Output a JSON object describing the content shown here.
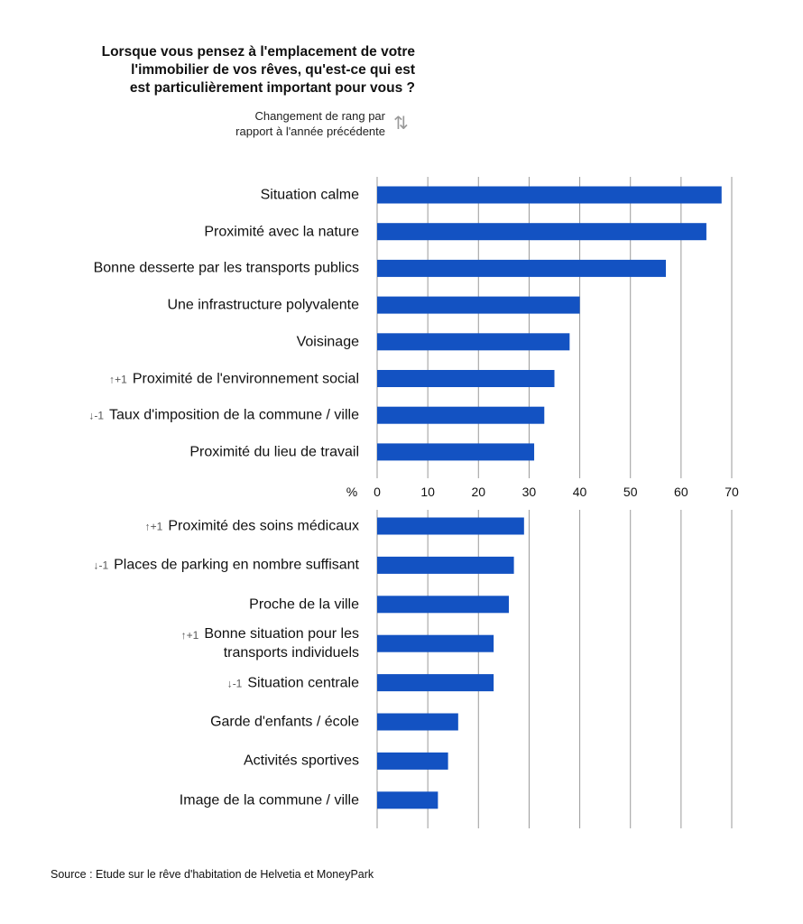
{
  "chart_data": [
    {
      "type": "bar",
      "orientation": "horizontal",
      "title": "Lorsque vous pensez à l'emplacement de votre\nl'immobilier de vos rêves, qu'est-ce qui est\nest particulièrement important pour vous ?",
      "subtitle": "Changement de rang par\nrapport à l'année précédente",
      "xlabel": "%",
      "color": "#1352c2",
      "grid": true,
      "xlim": [
        0,
        70
      ],
      "xticks": [
        0,
        10,
        20,
        30,
        40,
        50,
        60,
        70
      ],
      "categories": [
        "Situation calme",
        "Proximité avec la nature",
        "Bonne desserte par les transports publics",
        "Une infrastructure polyvalente",
        "Voisinage",
        "Proximité de l'environnement social",
        "Taux d'imposition de la commune / ville",
        "Proximité du lieu de travail"
      ],
      "rank_changes": [
        null,
        null,
        null,
        null,
        null,
        "↑+1",
        "↓-1",
        null
      ],
      "values": [
        68,
        65,
        57,
        40,
        38,
        35,
        33,
        31
      ]
    },
    {
      "type": "bar",
      "orientation": "horizontal",
      "color": "#1352c2",
      "grid": true,
      "xlim": [
        0,
        70
      ],
      "xticks": [
        0,
        10,
        20,
        30,
        40,
        50,
        60,
        70
      ],
      "categories": [
        "Proximité des soins médicaux",
        "Places de parking en nombre suffisant",
        "Proche de la ville",
        "Bonne situation pour les\ntransports individuels",
        "Situation centrale",
        "Garde d'enfants / école",
        "Activités sportives",
        "Image de la commune / ville"
      ],
      "rank_changes": [
        "↑+1",
        "↓-1",
        null,
        "↑+1",
        "↓-1",
        null,
        null,
        null
      ],
      "values": [
        29,
        27,
        26,
        23,
        23,
        16,
        14,
        12
      ]
    }
  ],
  "source": "Source : Etude sur le rêve d'habitation de Helvetia et MoneyPark"
}
